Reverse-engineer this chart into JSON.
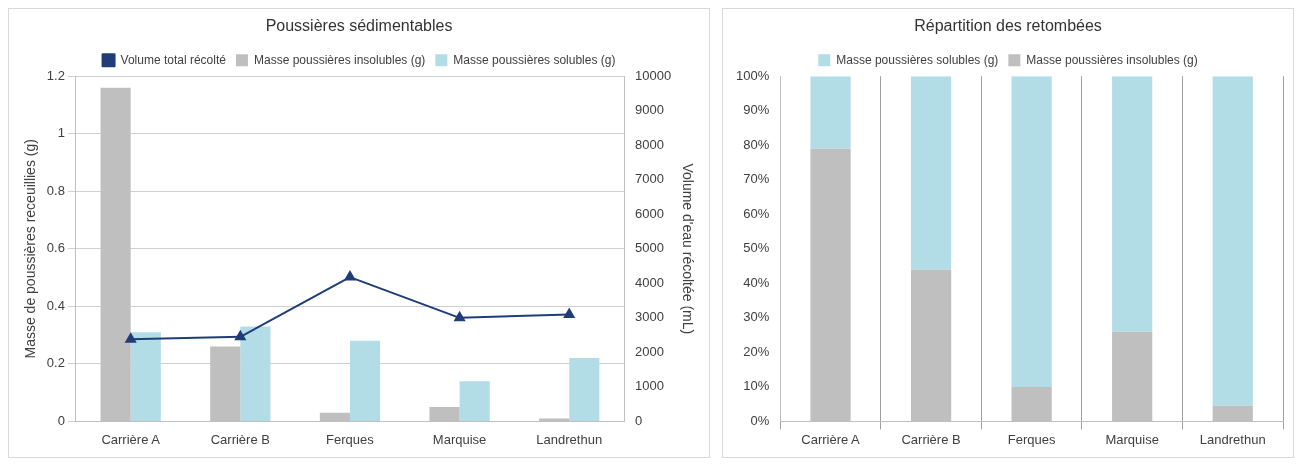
{
  "chart_data": [
    {
      "type": "bar",
      "title": "Poussières sédimentables",
      "ylabel": "Masse de poussières receuillies (g)",
      "y2label": "Volume d'eau récoltée (mL)",
      "categories": [
        "Carrière A",
        "Carrière B",
        "Ferques",
        "Marquise",
        "Landrethun"
      ],
      "series": [
        {
          "name": "Masse poussières insolubles (g)",
          "color": "#bfbfbf",
          "values": [
            1.16,
            0.26,
            0.03,
            0.05,
            0.01
          ]
        },
        {
          "name": "Masse poussières solubles (g)",
          "color": "#b3dde6",
          "values": [
            0.31,
            0.33,
            0.28,
            0.14,
            0.22
          ]
        },
        {
          "name": "Volume total récolté",
          "type": "line",
          "axis": "y2",
          "color": "#1f3e78",
          "values": [
            2380,
            2450,
            4180,
            3000,
            3100
          ]
        }
      ],
      "ylim": [
        0,
        1.2
      ],
      "yticks": [
        0,
        0.2,
        0.4,
        0.6,
        0.8,
        1,
        1.2
      ],
      "y2lim": [
        0,
        10000
      ],
      "y2ticks": [
        0,
        1000,
        2000,
        3000,
        4000,
        5000,
        6000,
        7000,
        8000,
        9000,
        10000
      ],
      "grid": "y",
      "legend": "top",
      "marker": "triangle"
    },
    {
      "type": "bar",
      "title": "Répartition des retombées",
      "stacked": true,
      "categories": [
        "Carrière A",
        "Carrière B",
        "Ferques",
        "Marquise",
        "Landrethun"
      ],
      "series": [
        {
          "name": "Masse poussières insolubles (g)",
          "color": "#bfbfbf",
          "values": [
            79,
            44,
            10,
            26,
            4.5
          ]
        },
        {
          "name": "Masse poussières solubles (g)",
          "color": "#b3dde6",
          "values": [
            21,
            56,
            90,
            74,
            95.5
          ]
        }
      ],
      "ylim": [
        0,
        100
      ],
      "yticks": [
        {
          "value": 0,
          "label": "0%"
        },
        {
          "value": 10,
          "label": "10%"
        },
        {
          "value": 20,
          "label": "20%"
        },
        {
          "value": 30,
          "label": "30%"
        },
        {
          "value": 40,
          "label": "40%"
        },
        {
          "value": 50,
          "label": "50%"
        },
        {
          "value": 60,
          "label": "60%"
        },
        {
          "value": 70,
          "label": "70%"
        },
        {
          "value": 80,
          "label": "80%"
        },
        {
          "value": 90,
          "label": "90%"
        },
        {
          "value": 100,
          "label": "100%"
        }
      ],
      "grid": "x",
      "legend": "top"
    }
  ]
}
